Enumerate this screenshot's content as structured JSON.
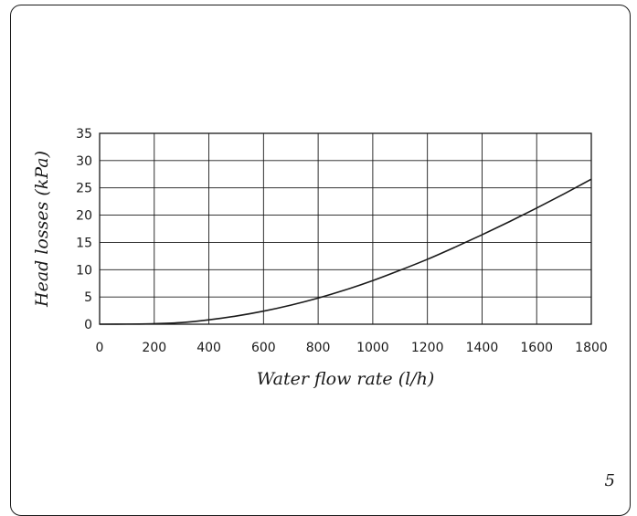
{
  "page_number": "5",
  "chart_data": {
    "type": "line",
    "title": "",
    "xlabel": "Water flow rate (l/h)",
    "ylabel": "Head losses (kPa)",
    "xlim": [
      0,
      1800
    ],
    "ylim": [
      0,
      35
    ],
    "x_ticks": [
      "0",
      "200",
      "400",
      "600",
      "800",
      "1000",
      "1200",
      "1400",
      "1600",
      "1800"
    ],
    "y_ticks": [
      "0",
      "5",
      "10",
      "15",
      "20",
      "25",
      "30",
      "35"
    ],
    "grid": true,
    "legend": "none",
    "series": [
      {
        "x": [
          0,
          100,
          200,
          300,
          400,
          500,
          600,
          700,
          800,
          900,
          1000,
          1100,
          1200,
          1300,
          1400,
          1500,
          1600,
          1700,
          1800
        ],
        "y": [
          0,
          0.02,
          0.1,
          0.3,
          0.8,
          1.5,
          2.4,
          3.5,
          4.8,
          6.3,
          8.0,
          9.9,
          11.9,
          14.1,
          16.4,
          18.8,
          21.3,
          23.9,
          26.6
        ]
      }
    ],
    "line_color": "#1a1a1a"
  }
}
